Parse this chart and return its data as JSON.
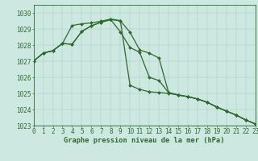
{
  "title": "Graphe pression niveau de la mer (hPa)",
  "background_color": "#cce8e0",
  "line_color": "#2d6a2d",
  "xlim": [
    0,
    23
  ],
  "ylim": [
    1023,
    1030.5
  ],
  "yticks": [
    1023,
    1024,
    1025,
    1026,
    1027,
    1028,
    1029,
    1030
  ],
  "xticks": [
    0,
    1,
    2,
    3,
    4,
    5,
    6,
    7,
    8,
    9,
    10,
    11,
    12,
    13,
    14,
    15,
    16,
    17,
    18,
    19,
    20,
    21,
    22,
    23
  ],
  "s0": [
    1027.0,
    1027.5,
    1027.65,
    1028.1,
    1028.05,
    1028.85,
    1029.2,
    1029.42,
    1029.58,
    1029.5,
    1028.8,
    1027.7,
    1027.5,
    1027.2,
    1025.05,
    1024.9,
    1024.8,
    1024.65,
    1024.45,
    1024.15,
    1023.9,
    1023.65,
    1023.35,
    1023.1
  ],
  "s1": [
    1027.0,
    1027.5,
    1027.65,
    1028.1,
    1029.22,
    1029.32,
    1029.38,
    1029.48,
    1029.62,
    1029.52,
    1025.5,
    1025.25,
    1025.1,
    1025.05,
    1025.0,
    1024.9,
    1024.8,
    1024.65,
    1024.45,
    1024.15,
    1023.9,
    1023.65,
    1023.35,
    1023.1
  ],
  "s2": [
    1027.0,
    1027.5,
    1027.65,
    1028.1,
    1028.05,
    1028.85,
    1029.2,
    1029.42,
    1029.58,
    1028.82,
    1027.85,
    1027.55,
    1026.0,
    1025.8,
    1025.05,
    1024.9,
    1024.8,
    1024.65,
    1024.45,
    1024.15,
    1023.9,
    1023.65,
    1023.35,
    1023.1
  ],
  "tick_fontsize": 5.5,
  "xlabel_fontsize": 6.2,
  "marker_size": 2.0,
  "linewidth": 0.9
}
